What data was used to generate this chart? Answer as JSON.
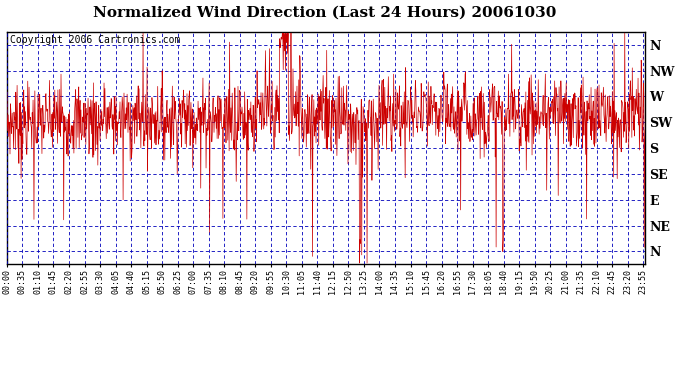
{
  "title": "Normalized Wind Direction (Last 24 Hours) 20061030",
  "copyright": "Copyright 2006 Cartronics.com",
  "background_color": "#ffffff",
  "plot_bg_color": "#ffffff",
  "line_color": "#cc0000",
  "grid_color": "#0000bb",
  "border_color": "#000000",
  "y_labels": [
    "N",
    "NW",
    "W",
    "SW",
    "S",
    "SE",
    "E",
    "NE",
    "N"
  ],
  "y_values": [
    8,
    7,
    6,
    5,
    4,
    3,
    2,
    1,
    0
  ],
  "ylim": [
    -0.5,
    8.5
  ],
  "xlim_min": 0,
  "xlim_max": 1439,
  "title_fontsize": 11,
  "copyright_fontsize": 7,
  "ylabel_fontsize": 9,
  "xlabel_fontsize": 6
}
